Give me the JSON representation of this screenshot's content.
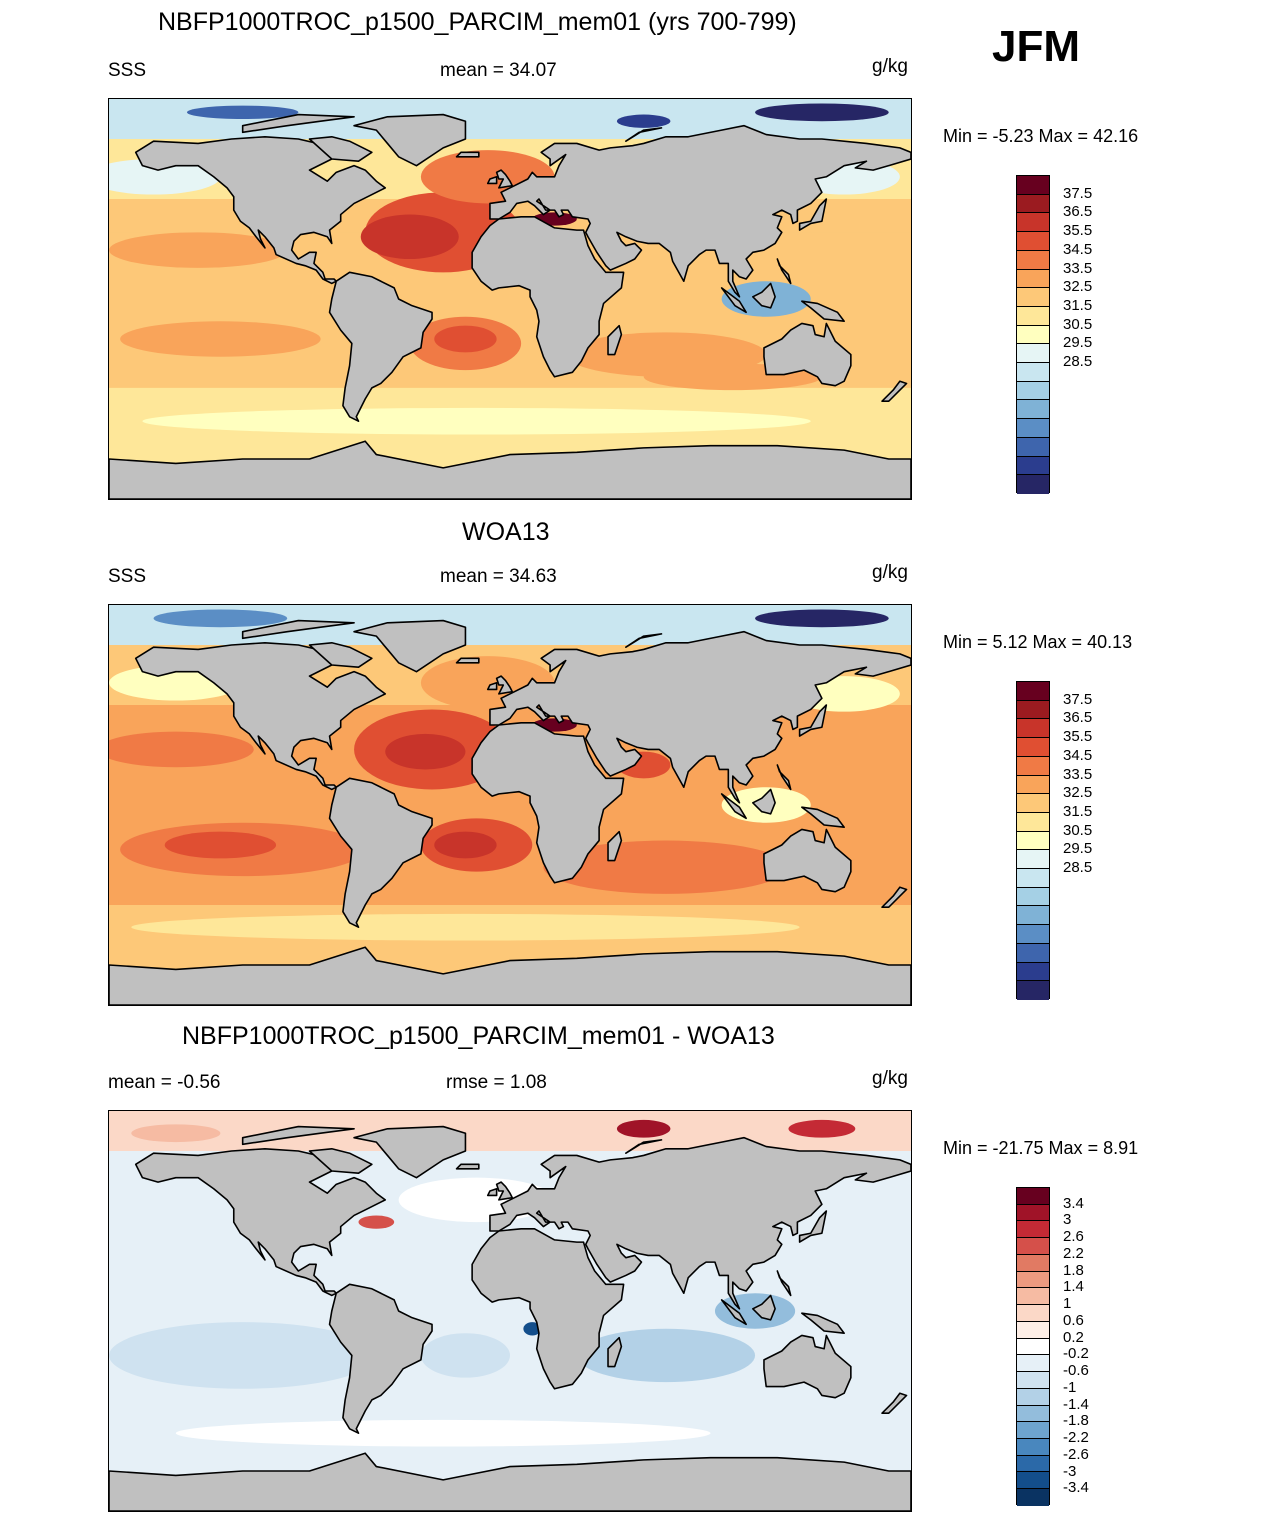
{
  "season": "JFM",
  "panels": [
    {
      "title": "NBFP1000TROC_p1500_PARCIM_mem01 (yrs 700-799)",
      "left": "SSS",
      "center": "mean =  34.07",
      "units": "g/kg",
      "minmax": "Min =  -5.23 Max =  42.16",
      "field": "sss_model"
    },
    {
      "title": "WOA13",
      "left": "SSS",
      "center": "mean =  34.63",
      "units": "g/kg",
      "minmax": "Min =   5.12 Max =  40.13",
      "field": "sss_obs"
    },
    {
      "title": "NBFP1000TROC_p1500_PARCIM_mem01 - WOA13",
      "left": "mean =  -0.56",
      "center": "rmse =   1.08",
      "units": "g/kg",
      "minmax": "Min = -21.75 Max =   8.91",
      "field": "sss_diff"
    }
  ],
  "colorbars": {
    "sss": {
      "labels": [
        "37.5",
        "36.5",
        "35.5",
        "34.5",
        "33.5",
        "32.5",
        "31.5",
        "30.5",
        "29.5",
        "28.5"
      ],
      "colors": [
        "#67001f",
        "#9b1b20",
        "#c8342a",
        "#e04f32",
        "#f07a45",
        "#f9a45a",
        "#fdc878",
        "#fee799",
        "#ffffbf",
        "#e6f5f5",
        "#c9e6f0",
        "#a5d0e5",
        "#7fb2d6",
        "#5b8ec5",
        "#3e65ad",
        "#2b3d8e",
        "#262665"
      ]
    },
    "diff": {
      "labels": [
        "3.4",
        "3",
        "2.6",
        "2.2",
        "1.8",
        "1.4",
        "1",
        "0.6",
        "0.2",
        "-0.2",
        "-0.6",
        "-1",
        "-1.4",
        "-1.8",
        "-2.2",
        "-2.6",
        "-3",
        "-3.4"
      ],
      "colors": [
        "#67001f",
        "#a01328",
        "#c42a35",
        "#d5504a",
        "#e17a63",
        "#ed9a80",
        "#f6bba3",
        "#fbd8c7",
        "#fdeee6",
        "#ffffff",
        "#e6f0f7",
        "#cfe2f0",
        "#b3d1e7",
        "#93bddc",
        "#6ea4ce",
        "#4987be",
        "#2b69a8",
        "#134e8b",
        "#0a3362"
      ]
    }
  },
  "map_colors": {
    "land": "#c0c0c0",
    "coast": "#000000"
  }
}
